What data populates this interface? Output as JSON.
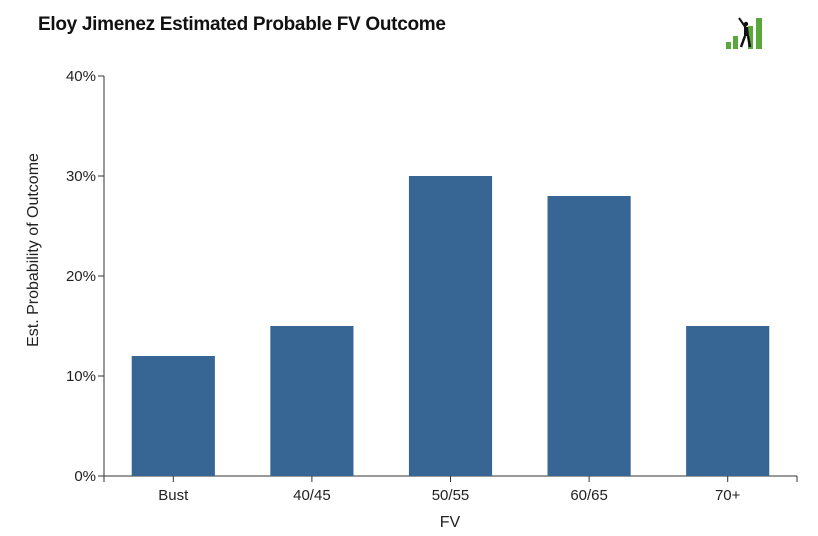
{
  "chart_data": {
    "type": "bar",
    "title": "Eloy Jimenez Estimated Probable FV Outcome",
    "xlabel": "FV",
    "ylabel": "Est. Probability of Outcome",
    "categories": [
      "Bust",
      "40/45",
      "50/55",
      "60/65",
      "70+"
    ],
    "values": [
      12,
      15,
      30,
      28,
      15
    ],
    "ylim": [
      0,
      40
    ],
    "yticks": [
      0,
      10,
      20,
      30,
      40
    ],
    "ytick_suffix": "%",
    "bar_color": "#376694",
    "grid": false
  },
  "logo": {
    "icon": "batter-bars-logo-icon",
    "bar_color": "#5aa83b",
    "figure_color": "#111111"
  }
}
